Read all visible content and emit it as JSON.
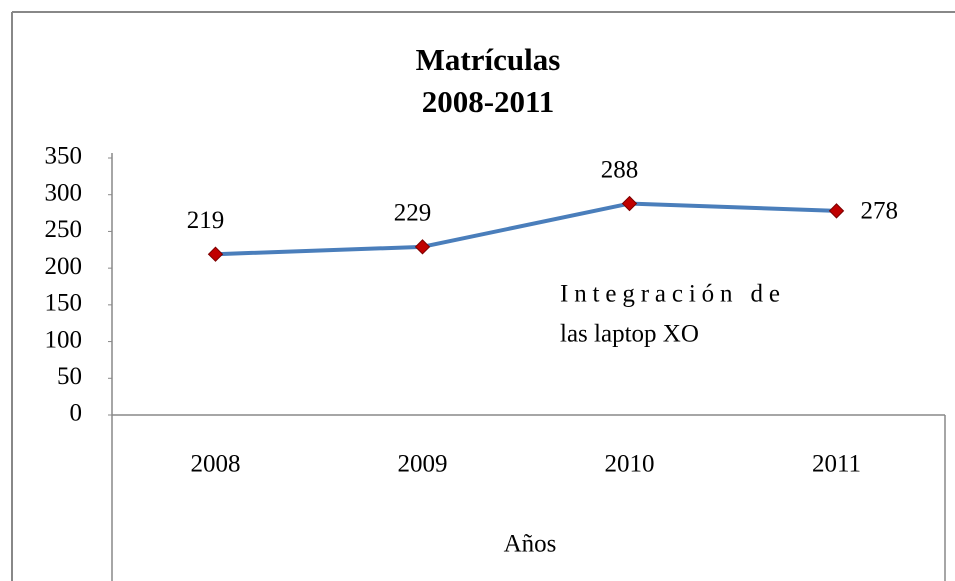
{
  "chart_data": {
    "type": "line",
    "title": "Matrículas",
    "subtitle": "2008-2011",
    "x_label": "Años",
    "categories": [
      "2008",
      "2009",
      "2010",
      "2011"
    ],
    "values": [
      219,
      229,
      288,
      278
    ],
    "color": "#4a7ebb",
    "marker_color": "#c00000",
    "ylim": [
      0,
      350
    ],
    "yticks": [
      0,
      50,
      100,
      150,
      200,
      250,
      300,
      350
    ],
    "annotation": [
      "Integración de",
      "las laptop XO"
    ]
  }
}
